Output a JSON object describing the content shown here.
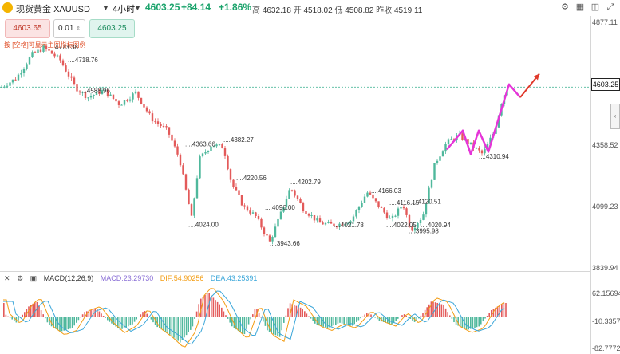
{
  "header": {
    "title": "现货黄金",
    "symbol": "XAUUSD",
    "timeframe": "4小时",
    "price": "4603.25",
    "change": "+84.14",
    "change_pct": "+1.86%",
    "high_label": "高",
    "high": "4632.18",
    "open_label": "开",
    "open": "4518.02",
    "low_label": "低",
    "low": "4508.82",
    "prev_label": "昨收",
    "prev": "4519.11"
  },
  "trade": {
    "sell_price": "4603.65",
    "quantity": "0.01",
    "buy_price": "4603.25"
  },
  "hint_text": "按 [空格]可显示主图指标图例",
  "price_axis": {
    "labels": [
      {
        "value": "4877.11",
        "price": 4877.11
      },
      {
        "value": "4603.25",
        "price": 4603.25
      },
      {
        "value": "4358.52",
        "price": 4358.52
      },
      {
        "value": "4099.23",
        "price": 4099.23
      },
      {
        "value": "3839.94",
        "price": 3839.94
      }
    ]
  },
  "macd": {
    "title": "MACD(12,26,9)",
    "macd_text": "MACD:23.29730",
    "dif_text": "DIF:54.90256",
    "dea_text": "DEA:43.25391",
    "axis": [
      "62.15694",
      "-10.33575",
      "-82.77724"
    ],
    "colors": {
      "macd": "#8a6fd6",
      "dif": "#f39c12",
      "dea": "#3aa6d9"
    }
  },
  "chart_data": {
    "type": "candlestick",
    "ylim": [
      3839.94,
      4877.11
    ],
    "current_price": 4603.25,
    "colors": {
      "up": "#4fb89c",
      "down": "#e35a5a",
      "forecast": "#e535d8",
      "forecast_up": "#e0392b"
    },
    "peak_labels": [
      {
        "text": "4773.38",
        "x": 60,
        "price": 4773.38
      },
      {
        "text": "4718.76",
        "x": 85,
        "price": 4718.76
      },
      {
        "text": "4588.96",
        "x": 100,
        "price": 4588.96
      },
      {
        "text": "4363.66",
        "x": 232,
        "price": 4363.66
      },
      {
        "text": "4382.27",
        "x": 280,
        "price": 4382.27
      },
      {
        "text": "4220.56",
        "x": 296,
        "price": 4220.56
      },
      {
        "text": "4202.79",
        "x": 364,
        "price": 4202.79
      },
      {
        "text": "4166.03",
        "x": 465,
        "price": 4166.03
      },
      {
        "text": "4120.51",
        "x": 515,
        "price": 4120.51
      },
      {
        "text": "4116.15",
        "x": 488,
        "price": 4116.15
      },
      {
        "text": "4096.00",
        "x": 332,
        "price": 4096.0
      },
      {
        "text": "4024.00",
        "x": 236,
        "price": 4024.0
      },
      {
        "text": "4021.78",
        "x": 418,
        "price": 4021.78
      },
      {
        "text": "4022.05",
        "x": 484,
        "price": 4022.05
      },
      {
        "text": "4020.94",
        "x": 527,
        "price": 4020.94
      },
      {
        "text": "3995.98",
        "x": 512,
        "price": 3995.98
      },
      {
        "text": "3943.66",
        "x": 338,
        "price": 3943.66
      },
      {
        "text": "4310.94",
        "x": 600,
        "price": 4310.94
      }
    ],
    "path": [
      [
        0,
        4600
      ],
      [
        20,
        4640
      ],
      [
        40,
        4740
      ],
      [
        55,
        4770
      ],
      [
        75,
        4720
      ],
      [
        95,
        4600
      ],
      [
        110,
        4560
      ],
      [
        130,
        4590
      ],
      [
        150,
        4530
      ],
      [
        170,
        4580
      ],
      [
        190,
        4470
      ],
      [
        210,
        4420
      ],
      [
        225,
        4300
      ],
      [
        240,
        4050
      ],
      [
        250,
        4300
      ],
      [
        265,
        4360
      ],
      [
        280,
        4350
      ],
      [
        290,
        4200
      ],
      [
        305,
        4100
      ],
      [
        320,
        4060
      ],
      [
        338,
        3950
      ],
      [
        350,
        4050
      ],
      [
        364,
        4180
      ],
      [
        380,
        4090
      ],
      [
        400,
        4030
      ],
      [
        420,
        4020
      ],
      [
        440,
        4040
      ],
      [
        460,
        4160
      ],
      [
        475,
        4100
      ],
      [
        490,
        4040
      ],
      [
        505,
        4110
      ],
      [
        515,
        4000
      ],
      [
        530,
        4060
      ],
      [
        545,
        4280
      ],
      [
        560,
        4370
      ],
      [
        575,
        4400
      ],
      [
        590,
        4360
      ],
      [
        605,
        4320
      ],
      [
        620,
        4420
      ],
      [
        630,
        4560
      ],
      [
        638,
        4610
      ]
    ],
    "forecast": [
      [
        560,
        4340
      ],
      [
        580,
        4420
      ],
      [
        590,
        4320
      ],
      [
        600,
        4420
      ],
      [
        612,
        4330
      ],
      [
        638,
        4615
      ],
      [
        652,
        4560
      ],
      [
        676,
        4660
      ]
    ],
    "macd_hist": [
      [
        5,
        10
      ],
      [
        20,
        -15
      ],
      [
        35,
        30
      ],
      [
        45,
        45
      ],
      [
        60,
        -20
      ],
      [
        75,
        -40
      ],
      [
        90,
        -30
      ],
      [
        105,
        15
      ],
      [
        120,
        25
      ],
      [
        135,
        -10
      ],
      [
        150,
        -35
      ],
      [
        165,
        -20
      ],
      [
        180,
        20
      ],
      [
        195,
        -25
      ],
      [
        210,
        -45
      ],
      [
        225,
        -70
      ],
      [
        240,
        -30
      ],
      [
        250,
        50
      ],
      [
        260,
        70
      ],
      [
        275,
        35
      ],
      [
        290,
        -25
      ],
      [
        305,
        -50
      ],
      [
        320,
        30
      ],
      [
        335,
        -40
      ],
      [
        350,
        -55
      ],
      [
        362,
        40
      ],
      [
        378,
        25
      ],
      [
        395,
        -20
      ],
      [
        410,
        -30
      ],
      [
        425,
        -15
      ],
      [
        440,
        -25
      ],
      [
        460,
        15
      ],
      [
        475,
        -10
      ],
      [
        490,
        -20
      ],
      [
        505,
        10
      ],
      [
        520,
        -15
      ],
      [
        540,
        45
      ],
      [
        555,
        35
      ],
      [
        570,
        -20
      ],
      [
        585,
        -35
      ],
      [
        600,
        -25
      ],
      [
        615,
        20
      ],
      [
        630,
        40
      ]
    ]
  }
}
